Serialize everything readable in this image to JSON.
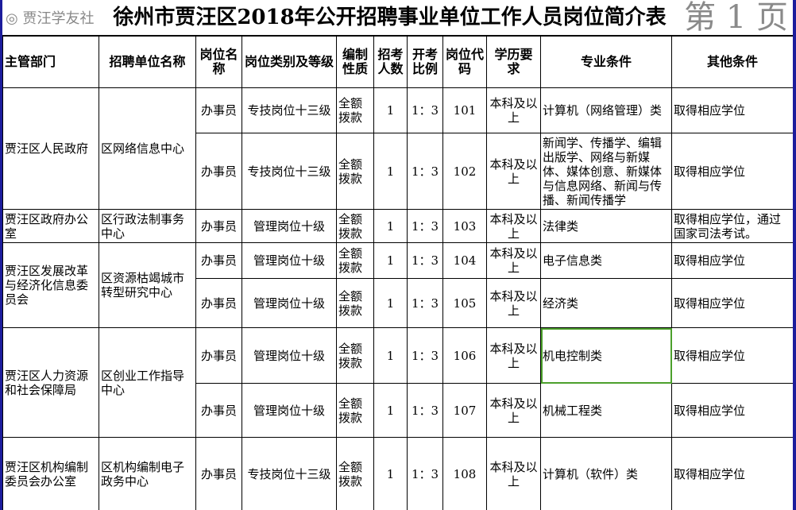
{
  "title": "徐州市贾汪区2018年公开招聘事业单位工作人员岗位简介表",
  "headers": [
    "主管部门",
    "招聘单位名称",
    "岗位名称",
    "岗位类别及等级",
    "编制性质",
    "招考人数",
    "开考比例",
    "岗位代码",
    "学历要求",
    "专业条件",
    "其他条件"
  ],
  "groups": [
    {
      "dept": "贾汪区人民政府",
      "unit": "区网络信息中心"
    },
    {
      "dept": "贾汪区政府办公室",
      "unit": "区行政法制事务中心"
    },
    {
      "dept": "贾汪区发展改革与经济化信息委员会",
      "unit": "区资源枯竭城市转型研究中心"
    },
    {
      "dept": "贾汪区人力资源和社会保障局",
      "unit": "区创业工作指导中心"
    },
    {
      "dept": "贾汪区机构编制委员会办公室",
      "unit": "区机构编制电子政务中心"
    }
  ],
  "rows": [
    {
      "name": "办事员",
      "level": "专技岗位十三级",
      "type": "全额拨款",
      "count": "1",
      "ratio": "1：3",
      "code": "101",
      "edu": "本科及以上",
      "major": "计算机（网络管理）类",
      "other": "取得相应学位"
    },
    {
      "name": "办事员",
      "level": "专技岗位十三级",
      "type": "全额拨款",
      "count": "1",
      "ratio": "1：3",
      "code": "102",
      "edu": "本科及以上",
      "major": "新闻学、传播学、编辑出版学、网络与新媒体、媒体创意、新媒体与信息网络、新闻与传播、新闻传播学",
      "other": "取得相应学位"
    },
    {
      "name": "办事员",
      "level": "管理岗位十级",
      "type": "全额拨款",
      "count": "1",
      "ratio": "1：3",
      "code": "103",
      "edu": "本科及以上",
      "major": "法律类",
      "other": "取得相应学位，通过国家司法考试。"
    },
    {
      "name": "办事员",
      "level": "管理岗位十级",
      "type": "全额拨款",
      "count": "1",
      "ratio": "1：3",
      "code": "104",
      "edu": "本科及以上",
      "major": "电子信息类",
      "other": "取得相应学位"
    },
    {
      "name": "办事员",
      "level": "管理岗位十级",
      "type": "全额拨款",
      "count": "1",
      "ratio": "1：3",
      "code": "105",
      "edu": "本科及以上",
      "major": "经济类",
      "other": "取得相应学位"
    },
    {
      "name": "办事员",
      "level": "管理岗位十级",
      "type": "全额拨款",
      "count": "1",
      "ratio": "1：3",
      "code": "106",
      "edu": "本科及以上",
      "major": "机电控制类",
      "other": "取得相应学位"
    },
    {
      "name": "办事员",
      "level": "管理岗位十级",
      "type": "全额拨款",
      "count": "1",
      "ratio": "1：3",
      "code": "107",
      "edu": "本科及以上",
      "major": "机械工程类",
      "other": "取得相应学位"
    },
    {
      "name": "办事员",
      "level": "专技岗位十三级",
      "type": "全额拨款",
      "count": "1",
      "ratio": "1：3",
      "code": "108",
      "edu": "本科及以上",
      "major": "计算机（软件）类",
      "other": "取得相应学位"
    }
  ],
  "page_watermark": "第 1 页",
  "logo_watermark": "贾汪学友社",
  "colors": {
    "frame": "#1c1c9c",
    "selection": "#4ca02c"
  }
}
